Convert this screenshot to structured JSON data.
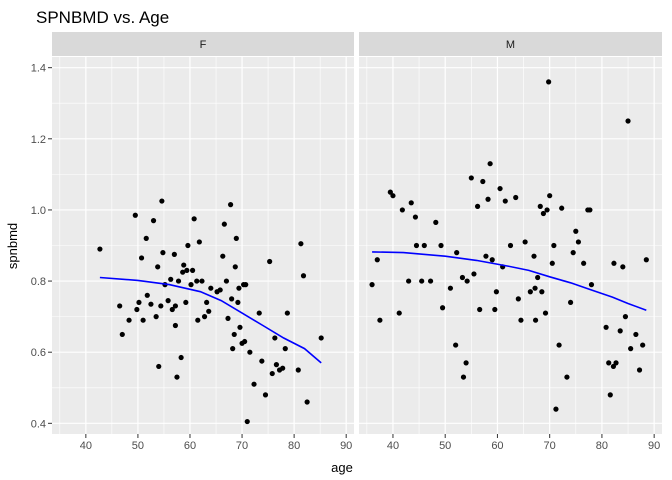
{
  "chart_data": {
    "type": "scatter",
    "title": "SPNBMD vs. Age",
    "xlabel": "age",
    "ylabel": "spnbmd",
    "xlim": [
      33.5,
      91.5
    ],
    "ylim": [
      0.37,
      1.43
    ],
    "x_ticks": [
      40,
      50,
      60,
      70,
      80,
      90
    ],
    "y_ticks": [
      0.4,
      0.6,
      0.8,
      1.0,
      1.2,
      1.4
    ],
    "y_tick_labels": [
      "0.4",
      "0.6",
      "0.8",
      "1.0",
      "1.2",
      "1.4"
    ],
    "grid": true,
    "panels": [
      {
        "label": "F",
        "points": [
          [
            42.7,
            0.89
          ],
          [
            46.5,
            0.73
          ],
          [
            47,
            0.65
          ],
          [
            48.3,
            0.69
          ],
          [
            49.5,
            0.985
          ],
          [
            49.8,
            0.72
          ],
          [
            50.2,
            0.74
          ],
          [
            50.7,
            0.865
          ],
          [
            51,
            0.69
          ],
          [
            51.6,
            0.92
          ],
          [
            51.8,
            0.76
          ],
          [
            52.5,
            0.735
          ],
          [
            53,
            0.97
          ],
          [
            53.5,
            0.7
          ],
          [
            53.8,
            0.84
          ],
          [
            54,
            0.56
          ],
          [
            54.4,
            0.73
          ],
          [
            54.6,
            1.025
          ],
          [
            54.8,
            0.88
          ],
          [
            55.2,
            0.79
          ],
          [
            55.8,
            0.745
          ],
          [
            56.3,
            0.805
          ],
          [
            56.6,
            0.72
          ],
          [
            57,
            0.875
          ],
          [
            57.2,
            0.73
          ],
          [
            57.2,
            0.675
          ],
          [
            57.5,
            0.53
          ],
          [
            57.8,
            0.8
          ],
          [
            58.3,
            0.585
          ],
          [
            58.6,
            0.825
          ],
          [
            58.8,
            0.845
          ],
          [
            59.2,
            0.74
          ],
          [
            59.4,
            0.83
          ],
          [
            59.6,
            0.9
          ],
          [
            60.2,
            0.79
          ],
          [
            60.5,
            0.83
          ],
          [
            60.8,
            0.975
          ],
          [
            61.3,
            0.8
          ],
          [
            61.8,
            0.91
          ],
          [
            61.5,
            0.69
          ],
          [
            62.3,
            0.8
          ],
          [
            62.8,
            0.7
          ],
          [
            63.2,
            0.74
          ],
          [
            63.6,
            0.715
          ],
          [
            64,
            0.78
          ],
          [
            65.2,
            0.77
          ],
          [
            65.8,
            0.775
          ],
          [
            66.3,
            0.87
          ],
          [
            66.6,
            0.96
          ],
          [
            67,
            0.8
          ],
          [
            67.3,
            0.695
          ],
          [
            67.8,
            1.015
          ],
          [
            68,
            0.75
          ],
          [
            68.2,
            0.61
          ],
          [
            68.5,
            0.65
          ],
          [
            68.7,
            0.84
          ],
          [
            68.9,
            0.92
          ],
          [
            69.2,
            0.74
          ],
          [
            69.4,
            0.78
          ],
          [
            69.6,
            0.67
          ],
          [
            70,
            0.625
          ],
          [
            70.3,
            0.79
          ],
          [
            70.5,
            0.63
          ],
          [
            70.7,
            0.79
          ],
          [
            71,
            0.405
          ],
          [
            71.5,
            0.6
          ],
          [
            72.3,
            0.51
          ],
          [
            73.3,
            0.71
          ],
          [
            73.8,
            0.575
          ],
          [
            74.5,
            0.48
          ],
          [
            75.3,
            0.855
          ],
          [
            75.8,
            0.54
          ],
          [
            76.3,
            0.64
          ],
          [
            76.6,
            0.565
          ],
          [
            77.2,
            0.55
          ],
          [
            77.8,
            0.555
          ],
          [
            78.3,
            0.61
          ],
          [
            78.7,
            0.71
          ],
          [
            80.8,
            0.55
          ],
          [
            81.3,
            0.905
          ],
          [
            81.8,
            0.815
          ],
          [
            82.5,
            0.46
          ],
          [
            85.2,
            0.64
          ]
        ],
        "smooth": [
          [
            42.7,
            0.81
          ],
          [
            50,
            0.802
          ],
          [
            56,
            0.79
          ],
          [
            62,
            0.77
          ],
          [
            66,
            0.745
          ],
          [
            70,
            0.71
          ],
          [
            74,
            0.675
          ],
          [
            78,
            0.64
          ],
          [
            82,
            0.61
          ],
          [
            85.2,
            0.57
          ]
        ]
      },
      {
        "label": "M",
        "points": [
          [
            36,
            0.79
          ],
          [
            37,
            0.86
          ],
          [
            37.5,
            0.69
          ],
          [
            39.5,
            1.05
          ],
          [
            40,
            1.04
          ],
          [
            41.2,
            0.71
          ],
          [
            41.8,
            1.0
          ],
          [
            43,
            0.8
          ],
          [
            43.5,
            1.02
          ],
          [
            44.3,
            0.98
          ],
          [
            44.5,
            0.9
          ],
          [
            45.5,
            0.8
          ],
          [
            46,
            0.9
          ],
          [
            47.2,
            0.8
          ],
          [
            48.2,
            0.965
          ],
          [
            49.2,
            0.9
          ],
          [
            49.5,
            0.725
          ],
          [
            51,
            0.78
          ],
          [
            52,
            0.62
          ],
          [
            52.2,
            0.88
          ],
          [
            53.3,
            0.81
          ],
          [
            53.5,
            0.53
          ],
          [
            54,
            0.57
          ],
          [
            54.2,
            0.8
          ],
          [
            55,
            1.09
          ],
          [
            55.5,
            0.82
          ],
          [
            56.2,
            1.01
          ],
          [
            56.6,
            0.72
          ],
          [
            57.2,
            1.08
          ],
          [
            57.8,
            0.87
          ],
          [
            58.2,
            1.03
          ],
          [
            58.6,
            1.13
          ],
          [
            59,
            0.86
          ],
          [
            59.5,
            0.72
          ],
          [
            59.8,
            0.77
          ],
          [
            60.5,
            1.06
          ],
          [
            61,
            0.84
          ],
          [
            61.5,
            1.025
          ],
          [
            62.5,
            0.9
          ],
          [
            63.5,
            1.035
          ],
          [
            64,
            0.75
          ],
          [
            64.5,
            0.69
          ],
          [
            65.3,
            0.91
          ],
          [
            66.3,
            0.77
          ],
          [
            67,
            0.87
          ],
          [
            67.2,
            0.78
          ],
          [
            67.3,
            0.69
          ],
          [
            67.7,
            0.81
          ],
          [
            68.2,
            1.01
          ],
          [
            68.5,
            0.77
          ],
          [
            68.8,
            0.99
          ],
          [
            69.2,
            0.71
          ],
          [
            69.5,
            1.0
          ],
          [
            69.8,
            1.36
          ],
          [
            70,
            1.04
          ],
          [
            70.5,
            0.85
          ],
          [
            70.8,
            0.9
          ],
          [
            71.2,
            0.44
          ],
          [
            71.8,
            0.62
          ],
          [
            72.3,
            1.005
          ],
          [
            73.3,
            0.53
          ],
          [
            74,
            0.74
          ],
          [
            74.5,
            0.88
          ],
          [
            75,
            0.94
          ],
          [
            75.5,
            0.91
          ],
          [
            76.5,
            0.85
          ],
          [
            77.3,
            1.0
          ],
          [
            77.7,
            1.0
          ],
          [
            78,
            0.79
          ],
          [
            80.8,
            0.67
          ],
          [
            81.3,
            0.57
          ],
          [
            81.6,
            0.48
          ],
          [
            82.2,
            0.56
          ],
          [
            82.3,
            0.85
          ],
          [
            82.7,
            0.57
          ],
          [
            83.5,
            0.66
          ],
          [
            84,
            0.84
          ],
          [
            84.5,
            0.7
          ],
          [
            85,
            1.25
          ],
          [
            85.5,
            0.61
          ],
          [
            86.5,
            0.65
          ],
          [
            87.2,
            0.55
          ],
          [
            87.8,
            0.62
          ],
          [
            88.5,
            0.86
          ]
        ],
        "smooth": [
          [
            36,
            0.882
          ],
          [
            42,
            0.88
          ],
          [
            50,
            0.87
          ],
          [
            56,
            0.858
          ],
          [
            62,
            0.842
          ],
          [
            66,
            0.83
          ],
          [
            70,
            0.812
          ],
          [
            74,
            0.795
          ],
          [
            78,
            0.775
          ],
          [
            82,
            0.755
          ],
          [
            85,
            0.737
          ],
          [
            88.5,
            0.718
          ]
        ]
      }
    ]
  },
  "colors": {
    "panel_bg": "#ebebeb",
    "grid_major": "#ffffff",
    "strip_bg": "#d9d9d9",
    "point": "#000000",
    "smooth": "#0000ff"
  }
}
